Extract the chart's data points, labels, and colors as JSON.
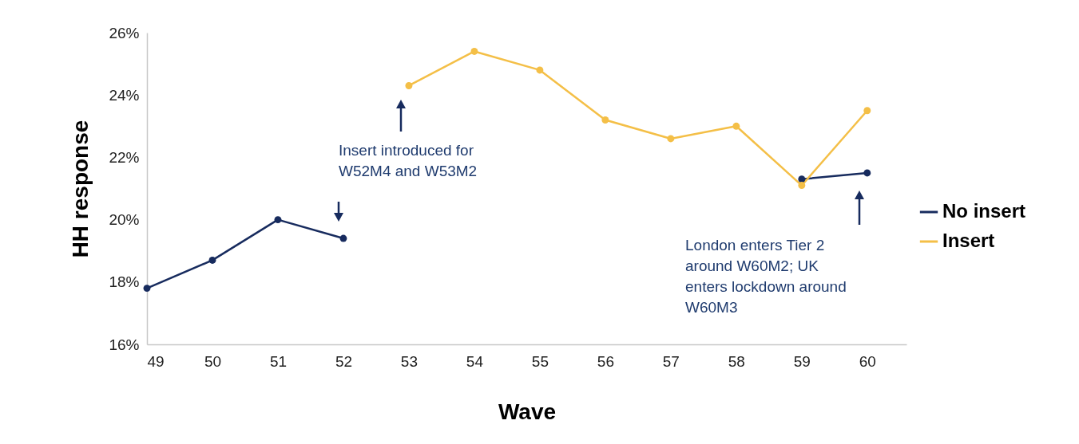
{
  "chart_data": {
    "type": "line",
    "xlabel": "Wave",
    "ylabel": "HH response",
    "x": [
      49,
      50,
      51,
      52,
      53,
      54,
      55,
      56,
      57,
      58,
      59,
      60
    ],
    "xlim": [
      49,
      60.6
    ],
    "xticks": [
      49,
      50,
      51,
      52,
      53,
      54,
      55,
      56,
      57,
      58,
      59,
      60
    ],
    "ylim": [
      16,
      26
    ],
    "yticks": [
      {
        "value": 16,
        "label": "16%"
      },
      {
        "value": 18,
        "label": "18%"
      },
      {
        "value": 20,
        "label": "20%"
      },
      {
        "value": 22,
        "label": "22%"
      },
      {
        "value": 24,
        "label": "24%"
      },
      {
        "value": 26,
        "label": "26%"
      }
    ],
    "series": [
      {
        "name": "No insert",
        "color": "#172b5e",
        "values": [
          17.8,
          18.7,
          20.0,
          19.4,
          null,
          null,
          null,
          null,
          null,
          null,
          21.3,
          21.5
        ]
      },
      {
        "name": "Insert",
        "color": "#f4bf47",
        "values": [
          null,
          null,
          null,
          null,
          24.3,
          25.4,
          24.8,
          23.2,
          22.6,
          23.0,
          21.1,
          23.5
        ]
      }
    ],
    "annotations": [
      "Insert introduced for\nW52M4 and W53M2",
      "London enters Tier 2\naround W60M2; UK\nenters lockdown around\nW60M3"
    ],
    "grid": false,
    "legend": "right",
    "marker": "circle",
    "line_style": "solid"
  }
}
